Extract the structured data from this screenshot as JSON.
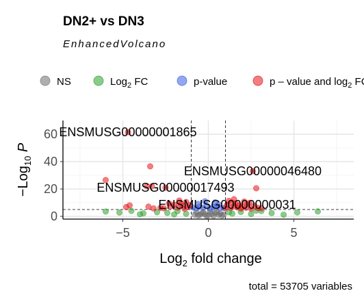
{
  "chart_data": {
    "type": "scatter",
    "title": "DN2+ vs DN3",
    "subtitle": "EnhancedVolcano",
    "xlabel": "Log2 fold change",
    "ylabel": "-Log10 P",
    "xlim": [
      -8.5,
      8.5
    ],
    "ylim": [
      -2,
      70
    ],
    "x_ticks": [
      -5,
      0,
      5
    ],
    "x_tick_labels": [
      "-5",
      "0",
      "5"
    ],
    "y_ticks": [
      0,
      20,
      40,
      60
    ],
    "y_tick_labels": [
      "0",
      "20",
      "40",
      "60"
    ],
    "grid": true,
    "legend_position": "top",
    "caption": "total = 53705 variables",
    "fc_cutoff": 1,
    "p_cutoff_y": 5,
    "legend": [
      {
        "key": "ns",
        "label": "NS",
        "color": "#6e6e6e"
      },
      {
        "key": "fc",
        "label": "Log",
        "sub": "2",
        "suffix": " FC",
        "color": "#2ca02c"
      },
      {
        "key": "p",
        "label": "p-value",
        "color": "#3a5ee0"
      },
      {
        "key": "both",
        "label": "p – value and log",
        "sub": "2",
        "suffix": " FC",
        "color": "#e8141a"
      }
    ],
    "series": [
      {
        "name": "NS",
        "color": "#6e6e6e",
        "points": [
          [
            -0.8,
            1.2
          ],
          [
            -0.6,
            0.8
          ],
          [
            -0.4,
            2.1
          ],
          [
            -0.2,
            1.5
          ],
          [
            0.0,
            0.9
          ],
          [
            0.2,
            1.8
          ],
          [
            0.4,
            2.5
          ],
          [
            0.6,
            1.1
          ],
          [
            0.8,
            0.6
          ],
          [
            -0.3,
            3.0
          ],
          [
            0.1,
            3.5
          ],
          [
            0.5,
            3.2
          ],
          [
            -0.7,
            2.8
          ],
          [
            0.3,
            0.4
          ],
          [
            -0.1,
            0.3
          ],
          [
            0.7,
            2.0
          ],
          [
            -0.5,
            1.0
          ],
          [
            0.9,
            1.4
          ]
        ]
      },
      {
        "name": "Log2 FC",
        "color": "#2ca02c",
        "points": [
          [
            -6.0,
            3.5
          ],
          [
            -5.2,
            2.8
          ],
          [
            -4.5,
            4.0
          ],
          [
            -3.8,
            2.2
          ],
          [
            -3.0,
            3.0
          ],
          [
            -2.4,
            2.5
          ],
          [
            -1.8,
            3.8
          ],
          [
            -1.3,
            1.9
          ],
          [
            -4.0,
            1.5
          ],
          [
            1.4,
            2.0
          ],
          [
            1.9,
            3.2
          ],
          [
            2.5,
            1.7
          ],
          [
            3.1,
            3.9
          ],
          [
            3.7,
            2.4
          ],
          [
            4.4,
            1.2
          ],
          [
            5.2,
            2.9
          ],
          [
            6.4,
            3.6
          ],
          [
            2.8,
            4.2
          ],
          [
            1.2,
            3.0
          ],
          [
            -2.0,
            1.4
          ]
        ]
      },
      {
        "name": "p-value",
        "color": "#3a5ee0",
        "points": [
          [
            -0.9,
            6.5
          ],
          [
            -0.7,
            5.8
          ],
          [
            -0.5,
            7.2
          ],
          [
            -0.3,
            6.1
          ],
          [
            -0.1,
            8.0
          ],
          [
            0.1,
            5.6
          ],
          [
            0.3,
            6.8
          ],
          [
            0.5,
            7.5
          ],
          [
            0.7,
            5.9
          ],
          [
            0.9,
            6.3
          ],
          [
            -0.6,
            9.1
          ],
          [
            0.4,
            10.2
          ],
          [
            -0.2,
            11.0
          ],
          [
            0.6,
            8.6
          ]
        ]
      },
      {
        "name": "p – value and log2 FC",
        "color": "#e8141a",
        "points": [
          [
            -4.7,
            61.5
          ],
          [
            -3.4,
            36.5
          ],
          [
            -6.0,
            26.5
          ],
          [
            -3.6,
            22.0
          ],
          [
            -3.3,
            22.0
          ],
          [
            -2.5,
            21.0
          ],
          [
            -4.6,
            8.0
          ],
          [
            -4.8,
            6.8
          ],
          [
            -3.2,
            5.8
          ],
          [
            -3.5,
            7.1
          ],
          [
            -2.8,
            6.2
          ],
          [
            -2.6,
            5.9
          ],
          [
            -2.2,
            7.3
          ],
          [
            -2.0,
            8.6
          ],
          [
            -1.8,
            6.4
          ],
          [
            -1.6,
            9.0
          ],
          [
            -1.5,
            7.8
          ],
          [
            -1.3,
            10.5
          ],
          [
            -1.2,
            6.7
          ],
          [
            -1.1,
            8.2
          ],
          [
            -1.7,
            11.5
          ],
          [
            -2.3,
            9.5
          ],
          [
            -1.4,
            5.5
          ],
          [
            2.6,
            33.0
          ],
          [
            2.8,
            20.5
          ],
          [
            1.1,
            8.5
          ],
          [
            1.3,
            6.2
          ],
          [
            1.4,
            10.0
          ],
          [
            1.5,
            7.4
          ],
          [
            1.6,
            9.4
          ],
          [
            1.7,
            6.6
          ],
          [
            1.8,
            8.1
          ],
          [
            1.9,
            5.7
          ],
          [
            2.0,
            7.0
          ],
          [
            2.2,
            6.3
          ],
          [
            2.4,
            9.9
          ],
          [
            2.5,
            5.6
          ],
          [
            2.7,
            7.7
          ],
          [
            2.9,
            6.1
          ],
          [
            3.1,
            5.9
          ],
          [
            1.2,
            11.3
          ],
          [
            1.5,
            12.5
          ],
          [
            2.1,
            10.8
          ],
          [
            1.0,
            6.0
          ],
          [
            2.3,
            8.9
          ]
        ]
      }
    ],
    "gene_labels": [
      {
        "text": "ENSMUSG00000001865",
        "x": -4.7,
        "y": 61.5
      },
      {
        "text": "ENSMUSG00000046480",
        "x": 2.6,
        "y": 33.0
      },
      {
        "text": "ENSMUSG00000017493",
        "x": -2.5,
        "y": 21.0
      },
      {
        "text": "ENSMUSG00000000031",
        "x": 1.1,
        "y": 8.5
      }
    ]
  }
}
